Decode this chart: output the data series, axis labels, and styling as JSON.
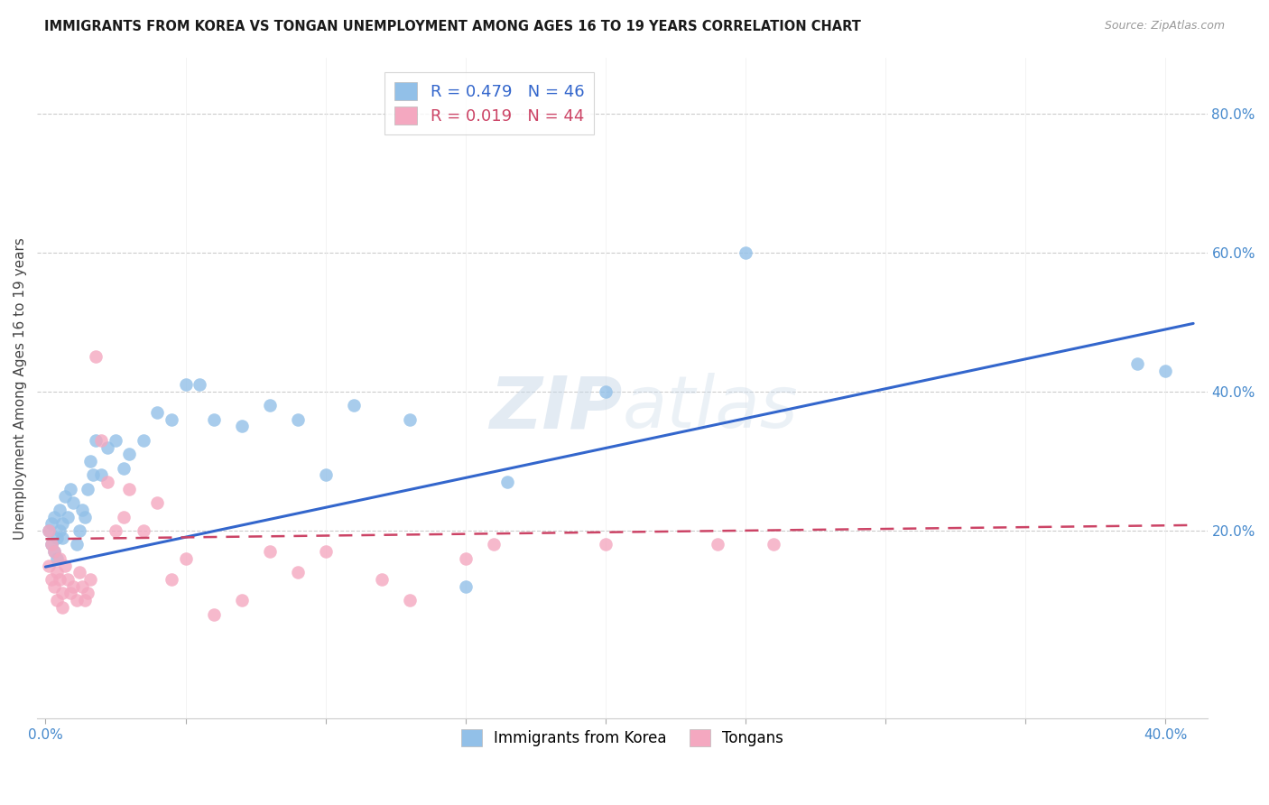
{
  "title": "IMMIGRANTS FROM KOREA VS TONGAN UNEMPLOYMENT AMONG AGES 16 TO 19 YEARS CORRELATION CHART",
  "source": "Source: ZipAtlas.com",
  "ylabel": "Unemployment Among Ages 16 to 19 years",
  "ytick_vals": [
    0.0,
    0.2,
    0.4,
    0.6,
    0.8
  ],
  "ytick_labels": [
    "",
    "20.0%",
    "40.0%",
    "60.0%",
    "80.0%"
  ],
  "xtick_vals": [
    0.0,
    0.05,
    0.1,
    0.15,
    0.2,
    0.25,
    0.3,
    0.35,
    0.4
  ],
  "xlim": [
    -0.003,
    0.415
  ],
  "ylim": [
    -0.07,
    0.88
  ],
  "legend_korea_r": "0.479",
  "legend_korea_n": "46",
  "legend_tongan_r": "0.019",
  "legend_tongan_n": "44",
  "legend_label_korea": "Immigrants from Korea",
  "legend_label_tongan": "Tongans",
  "korea_color": "#92c0e8",
  "tongan_color": "#f4a8c0",
  "trendline_korea_color": "#3366cc",
  "trendline_tongan_color": "#cc4466",
  "background_color": "#ffffff",
  "korea_x": [
    0.001,
    0.002,
    0.002,
    0.003,
    0.003,
    0.004,
    0.004,
    0.005,
    0.005,
    0.006,
    0.006,
    0.007,
    0.008,
    0.009,
    0.01,
    0.011,
    0.012,
    0.013,
    0.014,
    0.015,
    0.016,
    0.017,
    0.018,
    0.02,
    0.022,
    0.025,
    0.028,
    0.03,
    0.035,
    0.04,
    0.045,
    0.05,
    0.055,
    0.06,
    0.07,
    0.08,
    0.09,
    0.1,
    0.11,
    0.13,
    0.15,
    0.165,
    0.2,
    0.25,
    0.39,
    0.4
  ],
  "korea_y": [
    0.2,
    0.18,
    0.21,
    0.17,
    0.22,
    0.16,
    0.19,
    0.2,
    0.23,
    0.21,
    0.19,
    0.25,
    0.22,
    0.26,
    0.24,
    0.18,
    0.2,
    0.23,
    0.22,
    0.26,
    0.3,
    0.28,
    0.33,
    0.28,
    0.32,
    0.33,
    0.29,
    0.31,
    0.33,
    0.37,
    0.36,
    0.41,
    0.41,
    0.36,
    0.35,
    0.38,
    0.36,
    0.28,
    0.38,
    0.36,
    0.12,
    0.27,
    0.4,
    0.6,
    0.44,
    0.43
  ],
  "tongan_x": [
    0.001,
    0.001,
    0.002,
    0.002,
    0.003,
    0.003,
    0.004,
    0.004,
    0.005,
    0.005,
    0.006,
    0.006,
    0.007,
    0.008,
    0.009,
    0.01,
    0.011,
    0.012,
    0.013,
    0.014,
    0.015,
    0.016,
    0.018,
    0.02,
    0.022,
    0.025,
    0.028,
    0.03,
    0.035,
    0.04,
    0.045,
    0.05,
    0.06,
    0.07,
    0.08,
    0.09,
    0.1,
    0.12,
    0.13,
    0.15,
    0.16,
    0.2,
    0.24,
    0.26
  ],
  "tongan_y": [
    0.2,
    0.15,
    0.18,
    0.13,
    0.17,
    0.12,
    0.14,
    0.1,
    0.16,
    0.13,
    0.11,
    0.09,
    0.15,
    0.13,
    0.11,
    0.12,
    0.1,
    0.14,
    0.12,
    0.1,
    0.11,
    0.13,
    0.45,
    0.33,
    0.27,
    0.2,
    0.22,
    0.26,
    0.2,
    0.24,
    0.13,
    0.16,
    0.08,
    0.1,
    0.17,
    0.14,
    0.17,
    0.13,
    0.1,
    0.16,
    0.18,
    0.18,
    0.18,
    0.18
  ],
  "korea_trendline_x": [
    0.0,
    0.41
  ],
  "korea_trendline_y": [
    0.148,
    0.498
  ],
  "tongan_trendline_x": [
    0.0,
    0.41
  ],
  "tongan_trendline_y": [
    0.188,
    0.208
  ]
}
